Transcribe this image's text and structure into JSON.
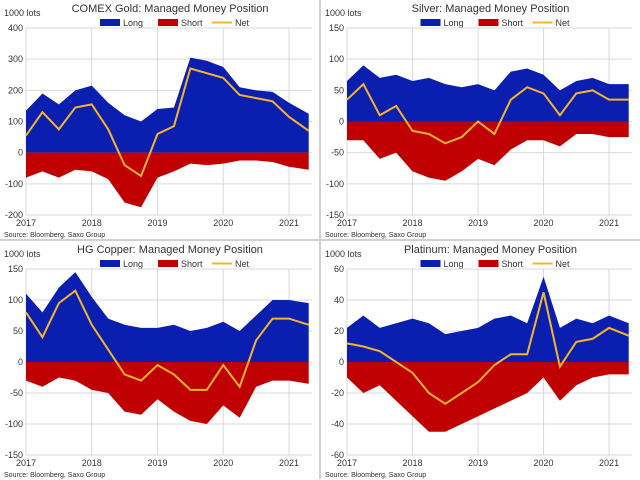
{
  "colors": {
    "long": "#0a1fb0",
    "short": "#c00000",
    "net": "#f5b52a",
    "grid": "#d9d9d9",
    "text": "#333333"
  },
  "chart_data": [
    {
      "type": "area",
      "title": "COMEX Gold: Managed Money Position",
      "units": "1000 lots",
      "source": "Source: Bloomberg, Saxo Group",
      "legend": [
        "Long",
        "Short",
        "Net"
      ],
      "legend_position": "top",
      "grid": true,
      "x_ticks": [
        "2017",
        "2018",
        "2019",
        "2020",
        "2021"
      ],
      "x_tick_values": [
        2017,
        2018,
        2019,
        2020,
        2021
      ],
      "xlim": [
        2017,
        2021.35
      ],
      "ylim": [
        -200,
        400
      ],
      "y_ticks": [
        400,
        300,
        200,
        100,
        0,
        -100,
        -200
      ],
      "x": [
        2017.0,
        2017.25,
        2017.5,
        2017.75,
        2018.0,
        2018.25,
        2018.5,
        2018.75,
        2019.0,
        2019.25,
        2019.5,
        2019.75,
        2020.0,
        2020.25,
        2020.5,
        2020.75,
        2021.0,
        2021.3
      ],
      "series": [
        {
          "name": "Long",
          "values": [
            135,
            190,
            155,
            200,
            215,
            160,
            120,
            100,
            140,
            145,
            305,
            295,
            275,
            210,
            200,
            195,
            160,
            125
          ]
        },
        {
          "name": "Short",
          "values": [
            -80,
            -60,
            -80,
            -55,
            -60,
            -85,
            -160,
            -175,
            -80,
            -60,
            -35,
            -40,
            -35,
            -25,
            -25,
            -30,
            -45,
            -55
          ]
        },
        {
          "name": "Net",
          "values": [
            55,
            130,
            75,
            145,
            155,
            75,
            -40,
            -75,
            60,
            85,
            270,
            255,
            240,
            185,
            175,
            165,
            115,
            70
          ]
        }
      ]
    },
    {
      "type": "area",
      "title": "Silver: Managed Money Position",
      "units": "1000 lots",
      "source": "Source: Bloomberg, Saxo Group",
      "legend": [
        "Long",
        "Short",
        "Net"
      ],
      "legend_position": "top",
      "grid": true,
      "x_ticks": [
        "2017",
        "2018",
        "2019",
        "2020",
        "2021"
      ],
      "x_tick_values": [
        2017,
        2018,
        2019,
        2020,
        2021
      ],
      "xlim": [
        2017,
        2021.35
      ],
      "ylim": [
        -150,
        150
      ],
      "y_ticks": [
        150,
        100,
        50,
        0,
        -50,
        -100,
        -150
      ],
      "x": [
        2017.0,
        2017.25,
        2017.5,
        2017.75,
        2018.0,
        2018.25,
        2018.5,
        2018.75,
        2019.0,
        2019.25,
        2019.5,
        2019.75,
        2020.0,
        2020.25,
        2020.5,
        2020.75,
        2021.0,
        2021.3
      ],
      "series": [
        {
          "name": "Long",
          "values": [
            65,
            90,
            70,
            75,
            65,
            70,
            60,
            55,
            60,
            50,
            80,
            85,
            75,
            50,
            65,
            70,
            60,
            60
          ]
        },
        {
          "name": "Short",
          "values": [
            -30,
            -30,
            -60,
            -50,
            -80,
            -90,
            -95,
            -80,
            -60,
            -70,
            -45,
            -30,
            -30,
            -40,
            -20,
            -20,
            -25,
            -25
          ]
        },
        {
          "name": "Net",
          "values": [
            35,
            60,
            10,
            25,
            -15,
            -20,
            -35,
            -25,
            0,
            -20,
            35,
            55,
            45,
            10,
            45,
            50,
            35,
            35
          ]
        }
      ]
    },
    {
      "type": "area",
      "title": "HG Copper: Managed Money Position",
      "units": "1000 lots",
      "source": "Source: Bloomberg, Saxo Group",
      "legend": [
        "Long",
        "Short",
        "Net"
      ],
      "legend_position": "top",
      "grid": true,
      "x_ticks": [
        "2017",
        "2018",
        "2019",
        "2020",
        "2021"
      ],
      "x_tick_values": [
        2017,
        2018,
        2019,
        2020,
        2021
      ],
      "xlim": [
        2017,
        2021.35
      ],
      "ylim": [
        -150,
        150
      ],
      "y_ticks": [
        150,
        100,
        50,
        0,
        -50,
        -100,
        -150
      ],
      "x": [
        2017.0,
        2017.25,
        2017.5,
        2017.75,
        2018.0,
        2018.25,
        2018.5,
        2018.75,
        2019.0,
        2019.25,
        2019.5,
        2019.75,
        2020.0,
        2020.25,
        2020.5,
        2020.75,
        2021.0,
        2021.3
      ],
      "series": [
        {
          "name": "Long",
          "values": [
            110,
            80,
            120,
            145,
            105,
            70,
            60,
            55,
            55,
            60,
            50,
            55,
            65,
            50,
            75,
            100,
            100,
            95
          ]
        },
        {
          "name": "Short",
          "values": [
            -30,
            -40,
            -25,
            -30,
            -45,
            -50,
            -80,
            -85,
            -60,
            -80,
            -95,
            -100,
            -70,
            -90,
            -40,
            -30,
            -30,
            -35
          ]
        },
        {
          "name": "Net",
          "values": [
            80,
            40,
            95,
            115,
            60,
            20,
            -20,
            -30,
            -5,
            -20,
            -45,
            -45,
            -5,
            -40,
            35,
            70,
            70,
            60
          ]
        }
      ]
    },
    {
      "type": "area",
      "title": "Platinum: Managed Money Position",
      "units": "1000 lots",
      "source": "Source: Bloomberg, Saxo Group",
      "legend": [
        "Long",
        "Short",
        "Net"
      ],
      "legend_position": "top",
      "grid": true,
      "x_ticks": [
        "2017",
        "2018",
        "2019",
        "2020",
        "2021"
      ],
      "x_tick_values": [
        2017,
        2018,
        2019,
        2020,
        2021
      ],
      "xlim": [
        2017,
        2021.35
      ],
      "ylim": [
        -60,
        60
      ],
      "y_ticks": [
        60,
        40,
        20,
        0,
        -20,
        -40,
        -60
      ],
      "x": [
        2017.0,
        2017.25,
        2017.5,
        2017.75,
        2018.0,
        2018.25,
        2018.5,
        2018.75,
        2019.0,
        2019.25,
        2019.5,
        2019.75,
        2020.0,
        2020.25,
        2020.5,
        2020.75,
        2021.0,
        2021.3
      ],
      "series": [
        {
          "name": "Long",
          "values": [
            22,
            30,
            22,
            25,
            28,
            25,
            18,
            20,
            22,
            28,
            30,
            25,
            55,
            22,
            28,
            25,
            30,
            25
          ]
        },
        {
          "name": "Short",
          "values": [
            -10,
            -20,
            -15,
            -25,
            -35,
            -45,
            -45,
            -40,
            -35,
            -30,
            -25,
            -20,
            -10,
            -25,
            -15,
            -10,
            -8,
            -8
          ]
        },
        {
          "name": "Net",
          "values": [
            12,
            10,
            7,
            0,
            -7,
            -20,
            -27,
            -20,
            -13,
            -2,
            5,
            5,
            45,
            -3,
            13,
            15,
            22,
            17
          ]
        }
      ]
    }
  ]
}
